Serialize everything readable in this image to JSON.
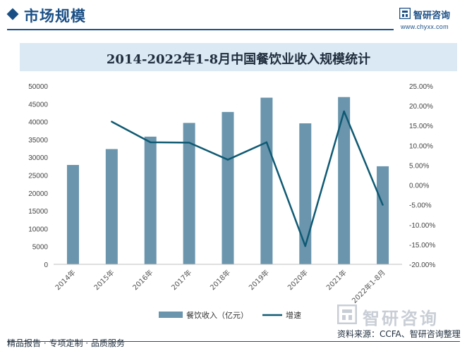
{
  "header": {
    "title": "市场规模",
    "brand_name": "智研咨询",
    "brand_url": "www.chyxx.com"
  },
  "footer": {
    "tagline": "精品报告 · 专项定制 · 品质服务",
    "source": "资料来源：CCFA、智研咨询整理",
    "logo_name": "智研咨询"
  },
  "colors": {
    "bar": "#6a95ad",
    "line": "#0f5a73",
    "title_bar": "#dbe9f4",
    "brand": "#1a4f86"
  },
  "chart_data": {
    "type": "bar",
    "title": "2014-2022年1-8月中国餐饮业收入规模统计",
    "categories": [
      "2014年",
      "2015年",
      "2016年",
      "2017年",
      "2018年",
      "2019年",
      "2020年",
      "2021年",
      "2022年1-8月"
    ],
    "series": [
      {
        "name": "餐饮收入（亿元）",
        "type": "bar",
        "axis": "left",
        "values": [
          27860,
          32310,
          35799,
          39644,
          42716,
          46721,
          39527,
          46895,
          27488
        ]
      },
      {
        "name": "增速",
        "type": "line",
        "axis": "right",
        "values": [
          null,
          16.0,
          10.8,
          10.7,
          6.4,
          10.8,
          -15.4,
          18.6,
          -5.0
        ]
      }
    ],
    "y_left": {
      "min": 0,
      "max": 50000,
      "ticks": [
        "0",
        "5000",
        "10000",
        "15000",
        "20000",
        "25000",
        "30000",
        "35000",
        "40000",
        "45000",
        "50000"
      ]
    },
    "y_right": {
      "min": -20,
      "max": 25,
      "ticks": [
        "-20.00%",
        "-15.00%",
        "-10.00%",
        "-5.00%",
        "0.00%",
        "5.00%",
        "10.00%",
        "15.00%",
        "20.00%",
        "25.00%"
      ]
    },
    "grid": false,
    "legend": "bottom"
  }
}
